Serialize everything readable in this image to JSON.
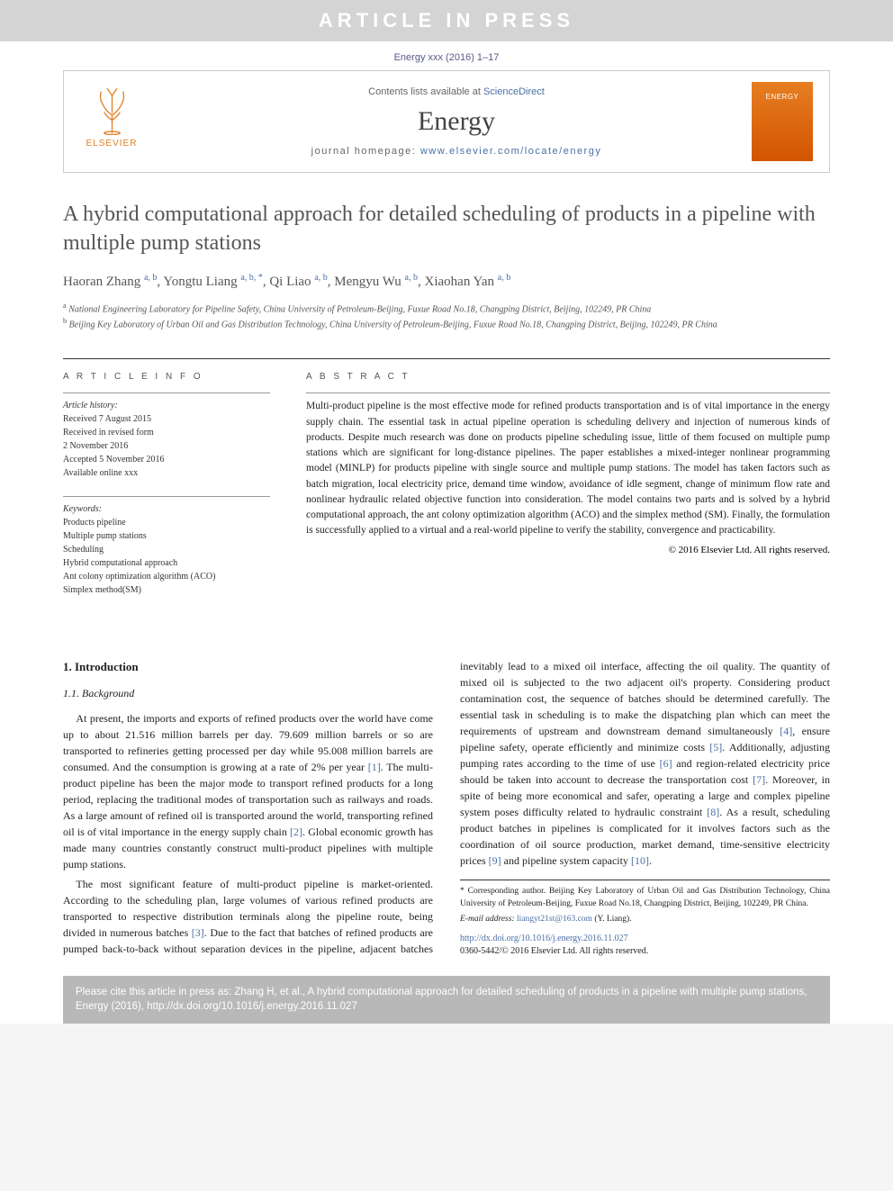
{
  "banner": "ARTICLE IN PRESS",
  "journal_ref": "Energy xxx (2016) 1–17",
  "header": {
    "elsevier": "ELSEVIER",
    "contents_prefix": "Contents lists available at ",
    "contents_link": "ScienceDirect",
    "journal_name": "Energy",
    "homepage_prefix": "journal homepage: ",
    "homepage_link": "www.elsevier.com/locate/energy",
    "cover_title": "ENERGY"
  },
  "title": "A hybrid computational approach for detailed scheduling of products in a pipeline with multiple pump stations",
  "authors_html": "Haoran Zhang <sup>a, b</sup>, Yongtu Liang <sup>a, b, *</sup>, Qi Liao <sup>a, b</sup>, Mengyu Wu <sup>a, b</sup>, Xiaohan Yan <sup>a, b</sup>",
  "affiliations": {
    "a": "National Engineering Laboratory for Pipeline Safety, China University of Petroleum-Beijing, Fuxue Road No.18, Changping District, Beijing, 102249, PR China",
    "b": "Beijing Key Laboratory of Urban Oil and Gas Distribution Technology, China University of Petroleum-Beijing, Fuxue Road No.18, Changping District, Beijing, 102249, PR China"
  },
  "article_info": {
    "head": "A R T I C L E  I N F O",
    "history_label": "Article history:",
    "received": "Received 7 August 2015",
    "revised": "Received in revised form",
    "revised_date": "2 November 2016",
    "accepted": "Accepted 5 November 2016",
    "online": "Available online xxx",
    "keywords_label": "Keywords:",
    "keywords": [
      "Products pipeline",
      "Multiple pump stations",
      "Scheduling",
      "Hybrid computational approach",
      "Ant colony optimization algorithm (ACO)",
      "Simplex method(SM)"
    ]
  },
  "abstract": {
    "head": "A B S T R A C T",
    "text": "Multi-product pipeline is the most effective mode for refined products transportation and is of vital importance in the energy supply chain. The essential task in actual pipeline operation is scheduling delivery and injection of numerous kinds of products. Despite much research was done on products pipeline scheduling issue, little of them focused on multiple pump stations which are significant for long-distance pipelines. The paper establishes a mixed-integer nonlinear programming model (MINLP) for products pipeline with single source and multiple pump stations. The model has taken factors such as batch migration, local electricity price, demand time window, avoidance of idle segment, change of minimum flow rate and nonlinear hydraulic related objective function into consideration. The model contains two parts and is solved by a hybrid computational approach, the ant colony optimization algorithm (ACO) and the simplex method (SM). Finally, the formulation is successfully applied to a virtual and a real-world pipeline to verify the stability, convergence and practicability.",
    "copyright": "© 2016 Elsevier Ltd. All rights reserved."
  },
  "body": {
    "s1": "1. Introduction",
    "s11": "1.1. Background",
    "p1_pre": "At present, the imports and exports of refined products over the world have come up to about 21.516 million barrels per day. 79.609 million barrels or so are transported to refineries getting processed per day while 95.008 million barrels are consumed. And the consumption is growing at a rate of 2% per year ",
    "r1": "[1]",
    "p1_mid": ". The multi-product pipeline has been the major mode to transport refined products for a long period, replacing the traditional modes of transportation such as railways and roads. As a large amount of refined oil is transported around the world, transporting refined oil is of vital importance in the energy supply chain ",
    "r2": "[2]",
    "p1_post": ". Global economic growth has made many countries constantly construct multi-product pipelines with multiple pump stations.",
    "p2_pre": "The most significant feature of multi-product pipeline is market-oriented. According to the scheduling plan, large volumes of various refined products are transported to respective distribution terminals along the pipeline route, being divided in numerous batches ",
    "r3": "[3]",
    "p2_mid1": ". Due to the fact that batches of refined products are pumped back-to-back without separation devices in the pipeline, adjacent batches inevitably lead to a mixed oil interface, affecting the oil quality. The quantity of mixed oil is subjected to the two adjacent oil's property. Considering product contamination cost, the sequence of batches should be determined carefully. The essential task in scheduling is to make the dispatching plan which can meet the requirements of upstream and downstream demand simultaneously ",
    "r4": "[4]",
    "p2_mid2": ", ensure pipeline safety, operate efficiently and minimize costs ",
    "r5": "[5]",
    "p2_mid3": ". Additionally, adjusting pumping rates according to the time of use ",
    "r6": "[6]",
    "p2_mid4": " and region-related electricity price should be taken into account to decrease the transportation cost ",
    "r7": "[7]",
    "p2_mid5": ". Moreover, in spite of being more economical and safer, operating a large and complex pipeline system poses difficulty related to hydraulic constraint ",
    "r8": "[8]",
    "p2_mid6": ". As a result, scheduling product batches in pipelines is complicated for it involves factors such as the coordination of oil source production, market demand, time-sensitive electricity prices ",
    "r9": "[9]",
    "p2_mid7": " and pipeline system capacity ",
    "r10": "[10]",
    "p2_post": "."
  },
  "footnote": {
    "corr": "* Corresponding author. Beijing Key Laboratory of Urban Oil and Gas Distribution Technology, China University of Petroleum-Beijing, Fuxue Road No.18, Changping District, Beijing, 102249, PR China.",
    "email_label": "E-mail address: ",
    "email": "liangyt21st@163.com",
    "email_suffix": " (Y. Liang).",
    "doi_link": "http://dx.doi.org/10.1016/j.energy.2016.11.027",
    "issn": "0360-5442/© 2016 Elsevier Ltd. All rights reserved."
  },
  "cite_box": "Please cite this article in press as: Zhang H, et al., A hybrid computational approach for detailed scheduling of products in a pipeline with multiple pump stations, Energy (2016), http://dx.doi.org/10.1016/j.energy.2016.11.027",
  "colors": {
    "banner_bg": "#d4d4d4",
    "link": "#4a6fa5",
    "elsevier_orange": "#e67e22",
    "cite_bg": "#b8b8b8"
  }
}
